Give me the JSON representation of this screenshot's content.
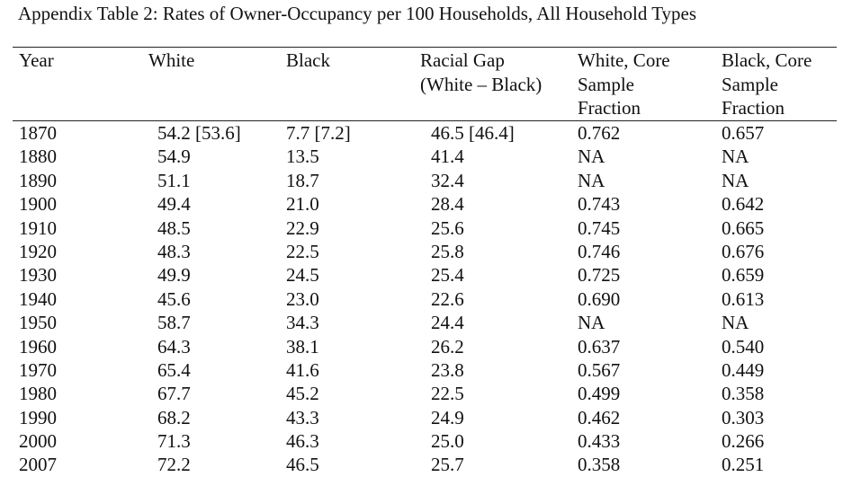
{
  "table": {
    "title": "Appendix Table 2:  Rates of Owner-Occupancy per 100 Households, All Household Types",
    "headers": [
      [
        "Year"
      ],
      [
        "White"
      ],
      [
        "Black"
      ],
      [
        "Racial Gap",
        "(White – Black)"
      ],
      [
        "White, Core",
        "Sample",
        "Fraction"
      ],
      [
        "Black, Core",
        "Sample",
        "Fraction"
      ]
    ],
    "rows": [
      [
        "1870",
        "54.2 [53.6]",
        "7.7 [7.2]",
        "46.5 [46.4]",
        "0.762",
        "0.657"
      ],
      [
        "1880",
        "54.9",
        "13.5",
        "41.4",
        "NA",
        "NA"
      ],
      [
        "1890",
        "51.1",
        "18.7",
        "32.4",
        "NA",
        "NA"
      ],
      [
        "1900",
        "49.4",
        "21.0",
        "28.4",
        "0.743",
        "0.642"
      ],
      [
        "1910",
        "48.5",
        "22.9",
        "25.6",
        "0.745",
        "0.665"
      ],
      [
        "1920",
        "48.3",
        "22.5",
        "25.8",
        "0.746",
        "0.676"
      ],
      [
        "1930",
        "49.9",
        "24.5",
        "25.4",
        "0.725",
        "0.659"
      ],
      [
        "1940",
        "45.6",
        "23.0",
        "22.6",
        "0.690",
        "0.613"
      ],
      [
        "1950",
        "58.7",
        "34.3",
        "24.4",
        "NA",
        "NA"
      ],
      [
        "1960",
        "64.3",
        "38.1",
        "26.2",
        "0.637",
        "0.540"
      ],
      [
        "1970",
        "65.4",
        "41.6",
        "23.8",
        "0.567",
        "0.449"
      ],
      [
        "1980",
        "67.7",
        "45.2",
        "22.5",
        "0.499",
        "0.358"
      ],
      [
        "1990",
        "68.2",
        "43.3",
        "24.9",
        "0.462",
        "0.303"
      ],
      [
        "2000",
        "71.3",
        "46.3",
        "25.0",
        "0.433",
        "0.266"
      ],
      [
        "2007",
        "72.2",
        "46.5",
        "25.7",
        "0.358",
        "0.251"
      ]
    ]
  }
}
